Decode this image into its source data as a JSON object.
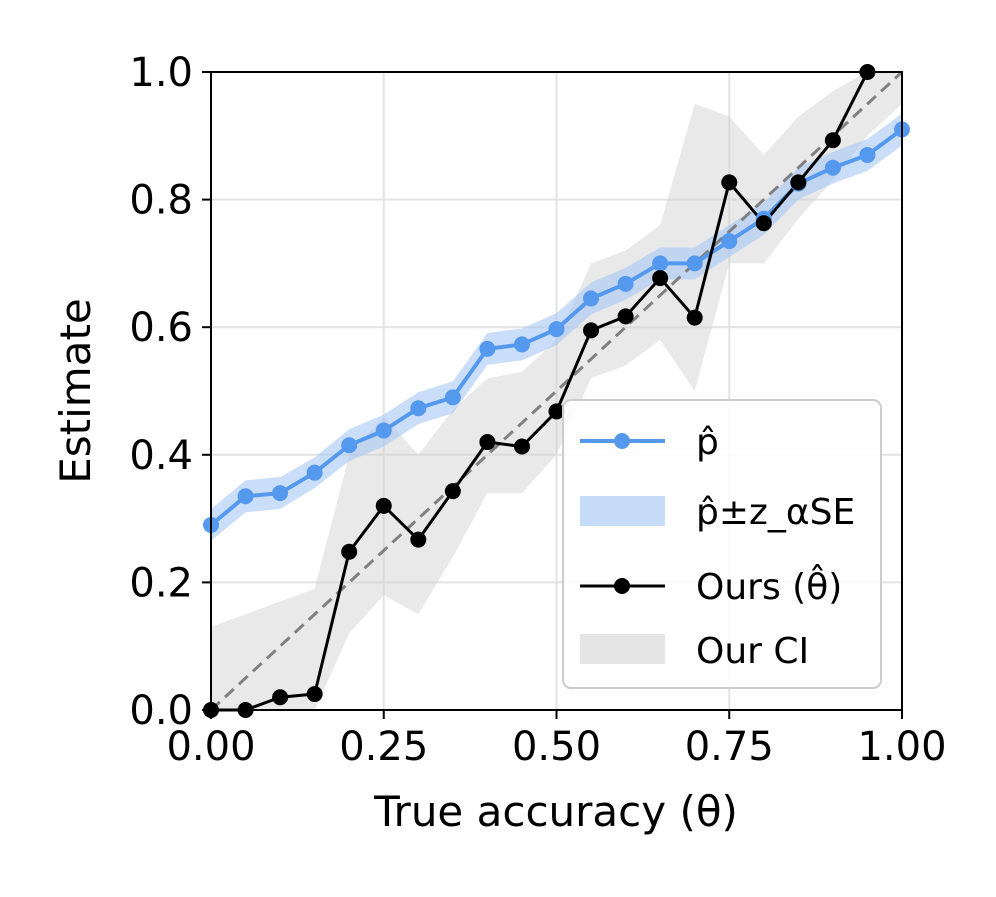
{
  "chart_data": {
    "type": "line",
    "xlabel": "True accuracy (θ)",
    "ylabel": "Estimate",
    "xlim": [
      0.0,
      1.0
    ],
    "ylim": [
      0.0,
      1.0
    ],
    "xticks": [
      "0.00",
      "0.25",
      "0.50",
      "0.75",
      "1.00"
    ],
    "xtick_values": [
      0.0,
      0.25,
      0.5,
      0.75,
      1.0
    ],
    "yticks": [
      "0.0",
      "0.2",
      "0.4",
      "0.6",
      "0.8",
      "1.0"
    ],
    "ytick_values": [
      0.0,
      0.2,
      0.4,
      0.6,
      0.8,
      1.0
    ],
    "grid": true,
    "legend_position": "lower-right",
    "x": [
      0.0,
      0.05,
      0.1,
      0.15,
      0.2,
      0.25,
      0.3,
      0.35,
      0.4,
      0.45,
      0.5,
      0.55,
      0.6,
      0.65,
      0.7,
      0.75,
      0.8,
      0.85,
      0.9,
      0.95,
      1.0
    ],
    "series": [
      {
        "name": "p̂",
        "legend_label": "p̂",
        "color": "#5599ee",
        "values": [
          0.29,
          0.335,
          0.34,
          0.372,
          0.415,
          0.438,
          0.473,
          0.49,
          0.566,
          0.573,
          0.597,
          0.645,
          0.668,
          0.7,
          0.7,
          0.735,
          0.77,
          0.825,
          0.85,
          0.87,
          0.91
        ],
        "band_label": "p̂±z_αSE",
        "band_color": "#a8c8f5",
        "band_lower": [
          0.265,
          0.31,
          0.315,
          0.348,
          0.39,
          0.413,
          0.448,
          0.465,
          0.541,
          0.548,
          0.572,
          0.62,
          0.643,
          0.675,
          0.675,
          0.71,
          0.745,
          0.8,
          0.825,
          0.845,
          0.885
        ],
        "band_upper": [
          0.315,
          0.36,
          0.365,
          0.396,
          0.44,
          0.463,
          0.498,
          0.515,
          0.591,
          0.598,
          0.622,
          0.67,
          0.693,
          0.725,
          0.725,
          0.76,
          0.795,
          0.85,
          0.875,
          0.895,
          0.935
        ]
      },
      {
        "name": "Ours (θ̂)",
        "legend_label": "Ours (θ̂)",
        "color": "#000000",
        "values": [
          0.0,
          0.0,
          0.02,
          0.025,
          0.248,
          0.32,
          0.267,
          0.343,
          0.42,
          0.413,
          0.468,
          0.595,
          0.617,
          0.677,
          0.615,
          0.827,
          0.763,
          0.827,
          0.893,
          1.0,
          null
        ],
        "band_label": "Our CI",
        "band_color": "#cfcfcf",
        "band_lower": [
          0.0,
          0.0,
          0.0,
          0.0,
          0.12,
          0.18,
          0.15,
          0.24,
          0.34,
          0.34,
          0.4,
          0.52,
          0.54,
          0.58,
          0.5,
          0.7,
          0.7,
          0.77,
          0.83,
          0.9,
          0.95
        ],
        "band_upper": [
          0.13,
          0.15,
          0.17,
          0.19,
          0.4,
          0.46,
          0.4,
          0.47,
          0.52,
          0.53,
          0.58,
          0.7,
          0.72,
          0.76,
          0.95,
          0.93,
          0.87,
          0.93,
          0.97,
          1.0,
          1.0
        ]
      }
    ],
    "reference_line": {
      "style": "dashed",
      "color": "#808080",
      "from": [
        0.0,
        0.0
      ],
      "to": [
        1.0,
        1.0
      ]
    }
  }
}
